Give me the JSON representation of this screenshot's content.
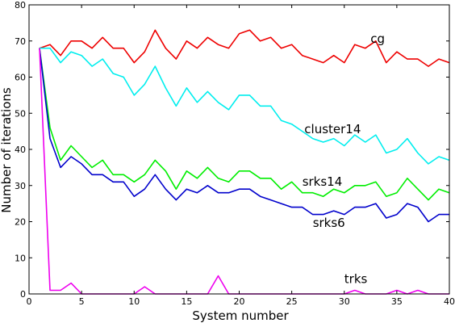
{
  "chart_data": {
    "type": "line",
    "title": "",
    "xlabel": "System number",
    "ylabel": "Number of iterations",
    "xlim": [
      0,
      40
    ],
    "ylim": [
      0,
      80
    ],
    "xticks": [
      0,
      5,
      10,
      15,
      20,
      25,
      30,
      35,
      40
    ],
    "yticks": [
      0,
      10,
      20,
      30,
      40,
      50,
      60,
      70,
      80
    ],
    "grid": false,
    "legend": "none",
    "x": [
      1,
      2,
      3,
      4,
      5,
      6,
      7,
      8,
      9,
      10,
      11,
      12,
      13,
      14,
      15,
      16,
      17,
      18,
      19,
      20,
      21,
      22,
      23,
      24,
      25,
      26,
      27,
      28,
      29,
      30,
      31,
      32,
      33,
      34,
      35,
      36,
      37,
      38,
      39,
      40
    ],
    "series": [
      {
        "name": "cg",
        "color": "#ee0000",
        "values": [
          68,
          69,
          66,
          70,
          70,
          68,
          71,
          68,
          68,
          64,
          67,
          73,
          68,
          65,
          70,
          68,
          71,
          69,
          68,
          72,
          73,
          70,
          71,
          68,
          69,
          66,
          65,
          64,
          66,
          64,
          69,
          68,
          70,
          64,
          67,
          65,
          65,
          63,
          65,
          64
        ]
      },
      {
        "name": "cluster14",
        "color": "#00eeee",
        "values": [
          68,
          68,
          64,
          67,
          66,
          63,
          65,
          61,
          60,
          55,
          58,
          63,
          57,
          52,
          57,
          53,
          56,
          53,
          51,
          55,
          55,
          52,
          52,
          48,
          47,
          45,
          43,
          42,
          43,
          41,
          44,
          42,
          44,
          39,
          40,
          43,
          39,
          36,
          38,
          37
        ]
      },
      {
        "name": "srks14",
        "color": "#00ee00",
        "values": [
          68,
          46,
          37,
          41,
          38,
          35,
          37,
          33,
          33,
          31,
          33,
          37,
          34,
          29,
          34,
          32,
          35,
          32,
          31,
          34,
          34,
          32,
          32,
          29,
          31,
          28,
          28,
          27,
          29,
          28,
          30,
          30,
          31,
          27,
          28,
          32,
          29,
          26,
          29,
          28
        ]
      },
      {
        "name": "srks6",
        "color": "#0000cc",
        "values": [
          68,
          43,
          35,
          38,
          36,
          33,
          33,
          31,
          31,
          27,
          29,
          33,
          29,
          26,
          29,
          28,
          30,
          28,
          28,
          29,
          29,
          27,
          26,
          25,
          24,
          24,
          22,
          22,
          23,
          22,
          24,
          24,
          25,
          21,
          22,
          25,
          24,
          20,
          22,
          22
        ]
      },
      {
        "name": "trks",
        "color": "#ee00ee",
        "values": [
          68,
          1,
          1,
          3,
          0,
          0,
          0,
          0,
          0,
          0,
          2,
          0,
          0,
          0,
          0,
          0,
          0,
          5,
          0,
          0,
          0,
          0,
          0,
          0,
          0,
          0,
          0,
          0,
          0,
          0,
          1,
          0,
          0,
          0,
          1,
          0,
          1,
          0,
          0,
          0
        ]
      }
    ],
    "labels": [
      {
        "text": "cg",
        "x": 32.5,
        "y": 69.5
      },
      {
        "text": "cluster14",
        "x": 26.2,
        "y": 44.5
      },
      {
        "text": "srks14",
        "x": 26.0,
        "y": 30.0
      },
      {
        "text": "srks6",
        "x": 27.0,
        "y": 18.6
      },
      {
        "text": "trks",
        "x": 30.0,
        "y": 3.0
      }
    ]
  }
}
